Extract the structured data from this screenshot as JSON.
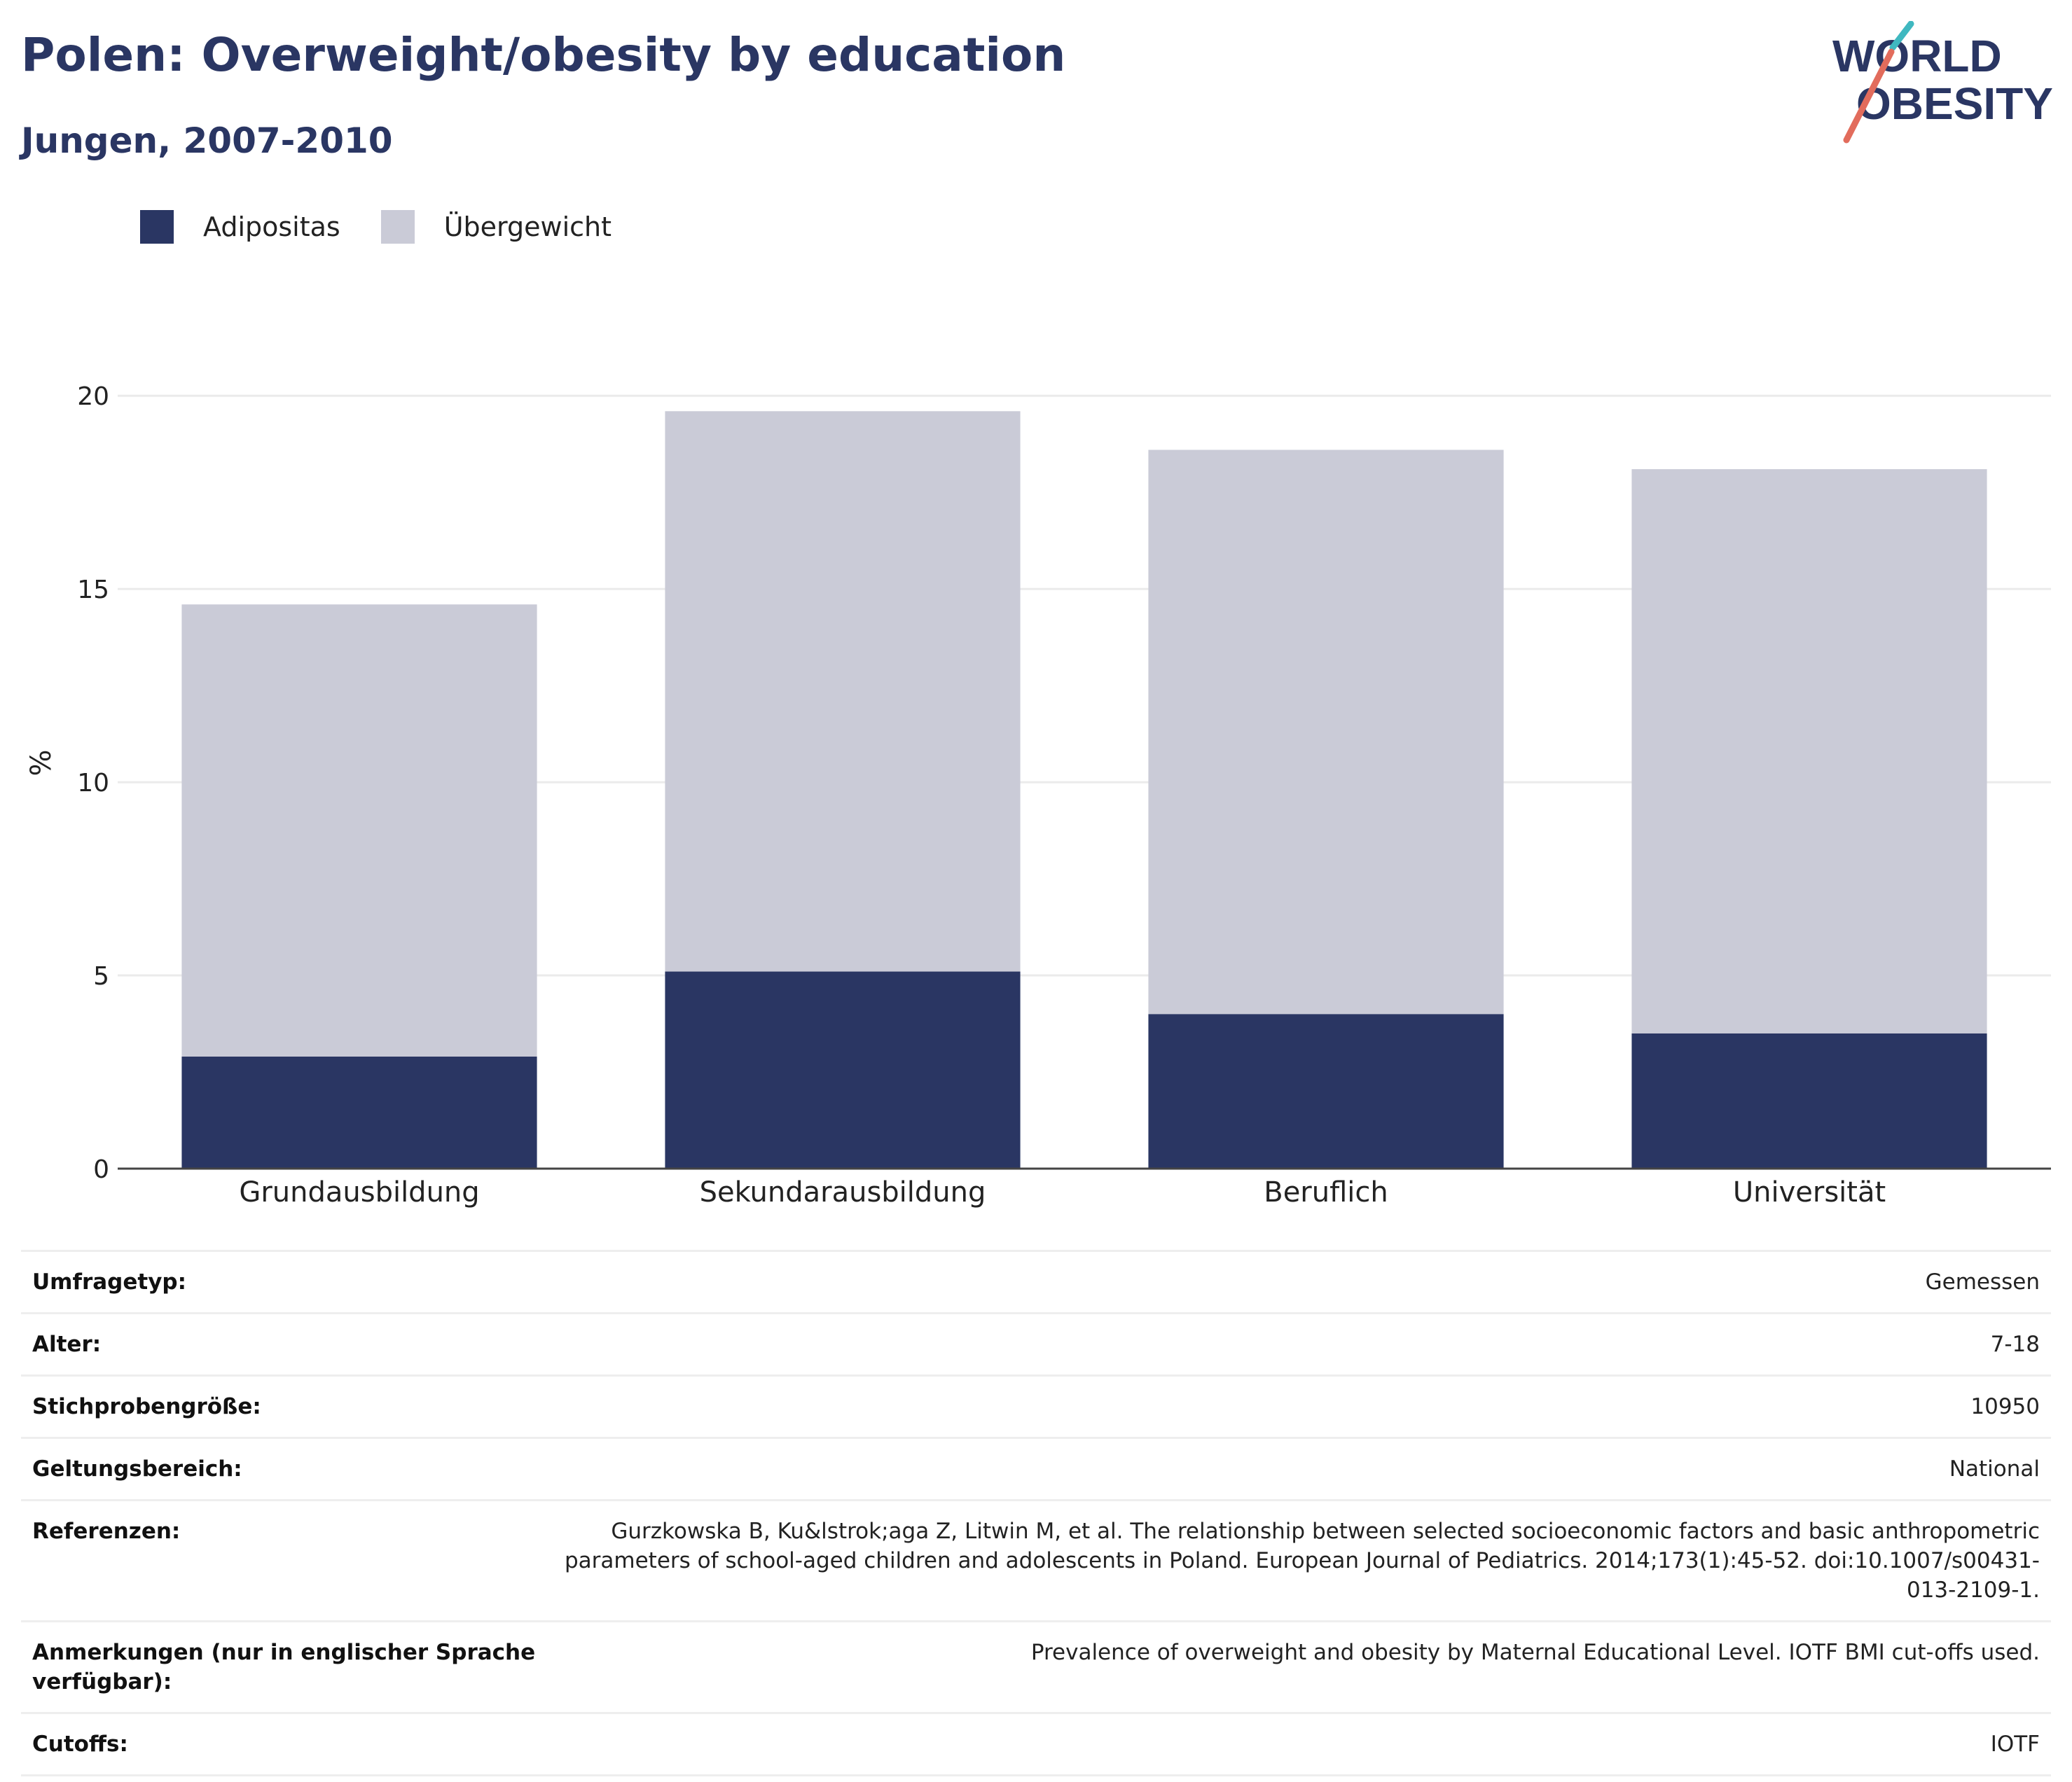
{
  "header": {
    "title": "Polen: Overweight/obesity by education",
    "subtitle": "Jungen, 2007-2010"
  },
  "logo": {
    "line1": "WORLD",
    "line2": "OBESITY",
    "colors": {
      "text": "#2a3663",
      "slash_teal": "#3fb8c0",
      "slash_coral": "#e26c5c"
    }
  },
  "chart_data": {
    "type": "bar",
    "stacked": true,
    "categories": [
      "Grundausbildung",
      "Sekundarausbildung",
      "Beruflich",
      "Universität"
    ],
    "series": [
      {
        "name": "Adipositas",
        "color": "#2a3663",
        "values": [
          2.9,
          5.1,
          4.0,
          3.5
        ]
      },
      {
        "name": "Übergewicht",
        "color": "#cacbd7",
        "values": [
          11.7,
          14.5,
          14.6,
          14.6
        ]
      }
    ],
    "ylabel": "%",
    "xlabel": "",
    "ylim": [
      0,
      21
    ],
    "yticks": [
      0,
      5,
      10,
      15,
      20
    ],
    "grid": true,
    "legend_position": "top-left"
  },
  "meta": {
    "rows": [
      {
        "label": "Umfragetyp:",
        "value": "Gemessen"
      },
      {
        "label": "Alter:",
        "value": "7-18"
      },
      {
        "label": "Stichprobengröße:",
        "value": "10950"
      },
      {
        "label": "Geltungsbereich:",
        "value": "National"
      },
      {
        "label": "Referenzen:",
        "value": "Gurzkowska B, Ku&lstrok;aga Z, Litwin M, et al. The relationship between selected socioeconomic factors and basic anthropometric parameters of school-aged children and adolescents in Poland. European Journal of Pediatrics. 2014;173(1):45-52. doi:10.1007/s00431-013-2109-1."
      },
      {
        "label": "Anmerkungen (nur in englischer Sprache verfügbar):",
        "value": "Prevalence of overweight and obesity by Maternal Educational Level. IOTF BMI cut-offs used."
      },
      {
        "label": "Cutoffs:",
        "value": "IOTF"
      }
    ]
  }
}
